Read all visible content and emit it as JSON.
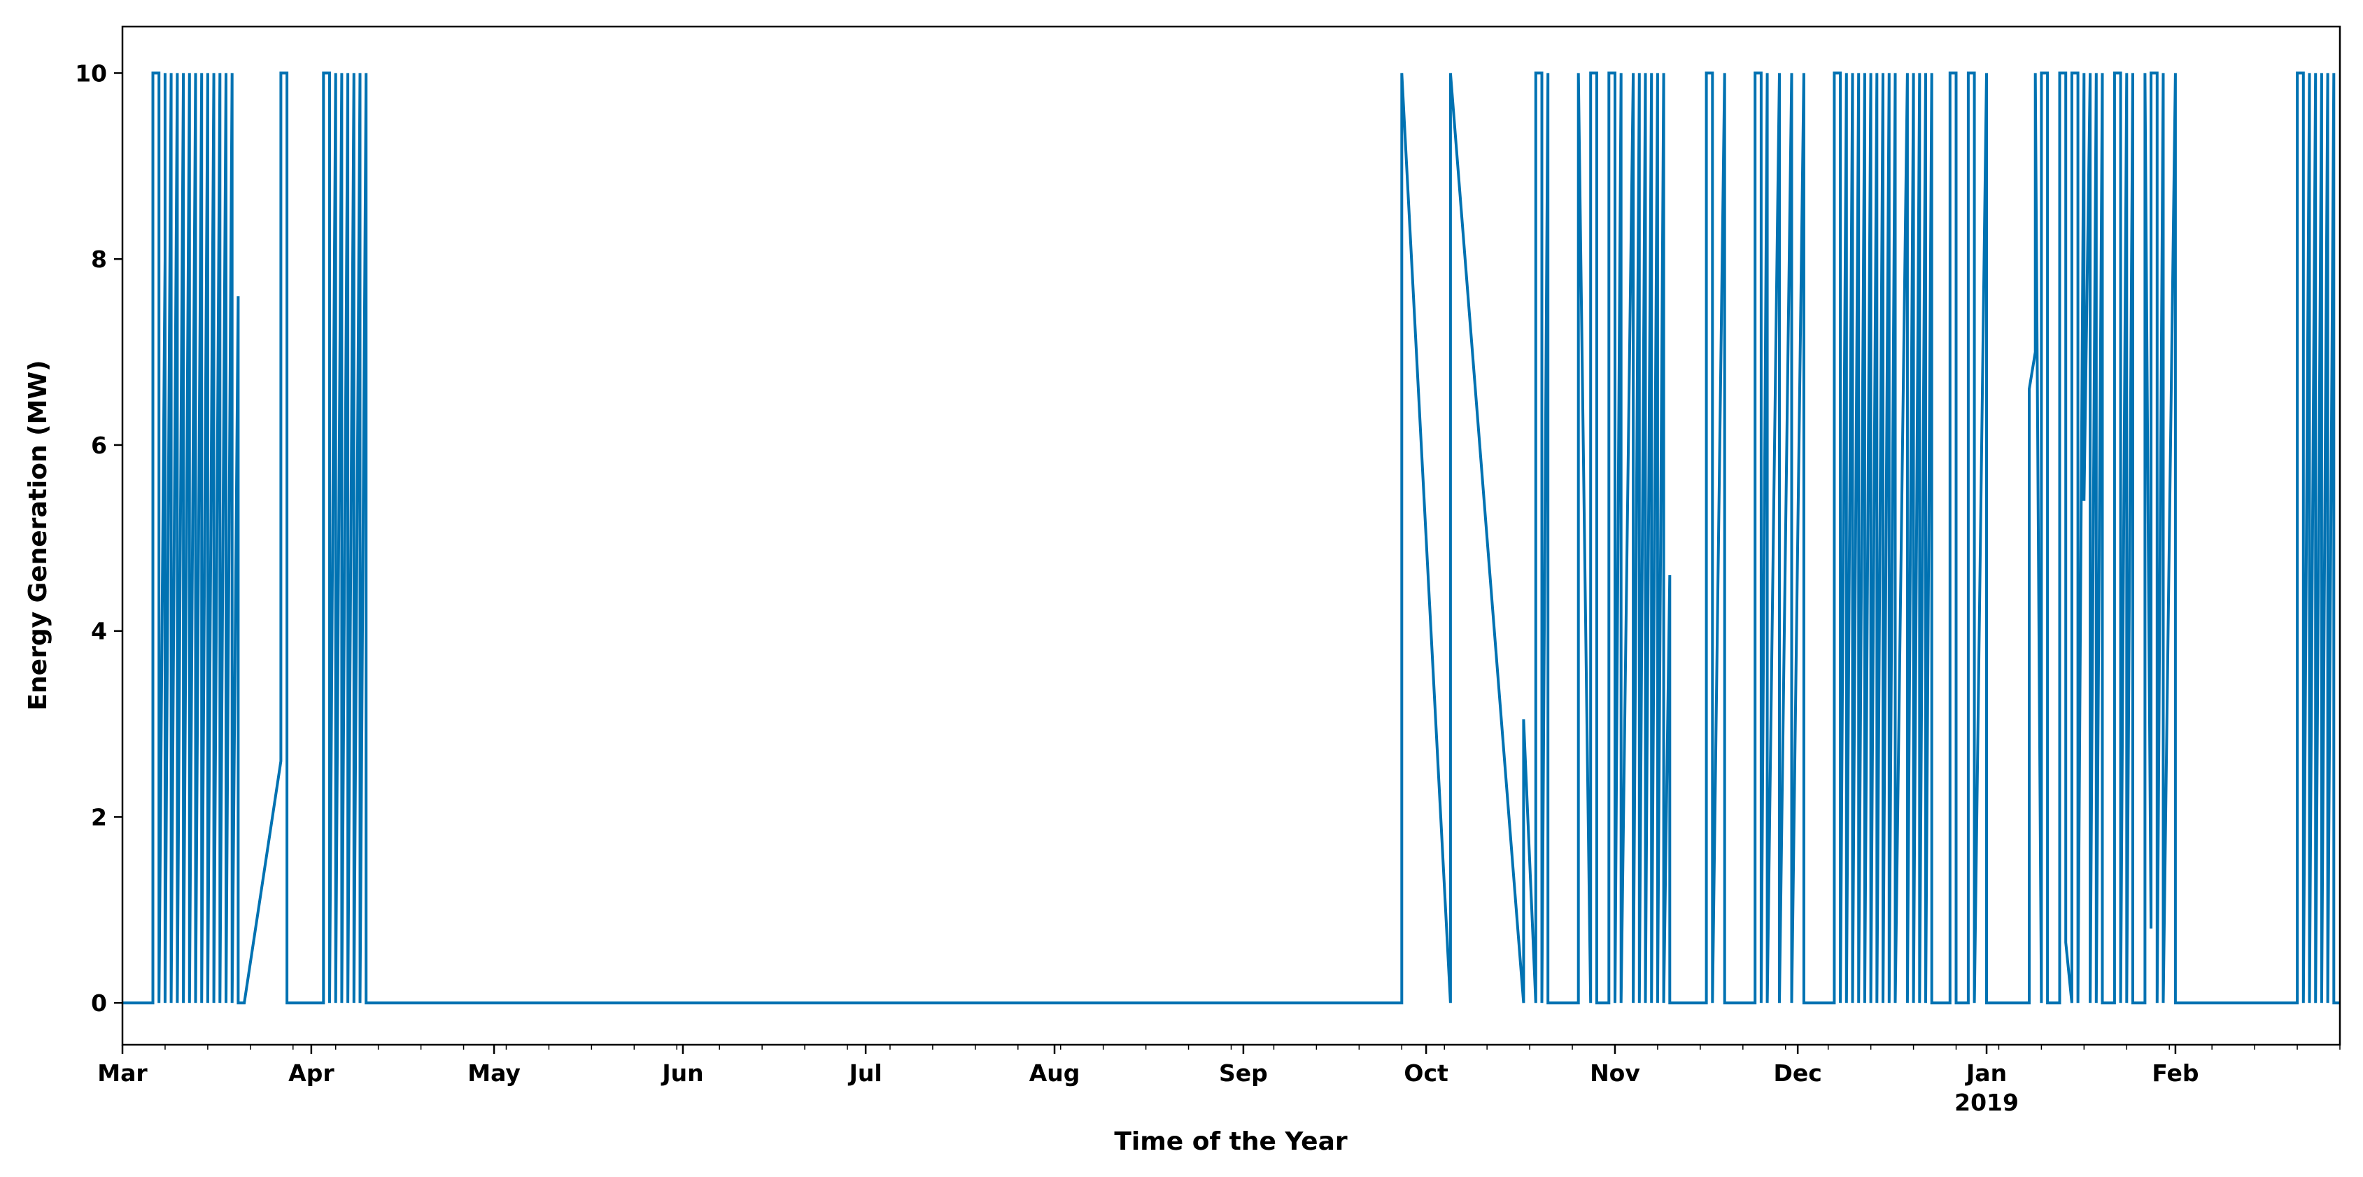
{
  "chart_data": {
    "type": "line",
    "title": "",
    "xlabel": "Time of the Year",
    "ylabel": "Energy Generation (MW)",
    "ylim": [
      -0.45,
      10.5
    ],
    "xlim": [
      "2018-03-01",
      "2019-02-28"
    ],
    "grid": false,
    "legend": "none",
    "line_color": "#0072b2",
    "y_ticks": [
      0,
      2,
      4,
      6,
      8,
      10
    ],
    "y_tick_labels": [
      "0",
      "2",
      "4",
      "6",
      "8",
      "10"
    ],
    "x_ticks": [
      {
        "date": "2018-03-01",
        "label": "Mar"
      },
      {
        "date": "2018-04-01",
        "label": "Apr"
      },
      {
        "date": "2018-05-01",
        "label": "May"
      },
      {
        "date": "2018-06-01",
        "label": "Jun"
      },
      {
        "date": "2018-07-01",
        "label": "Jul"
      },
      {
        "date": "2018-08-01",
        "label": "Aug"
      },
      {
        "date": "2018-09-01",
        "label": "Sep"
      },
      {
        "date": "2018-10-01",
        "label": "Oct"
      },
      {
        "date": "2018-11-01",
        "label": "Nov"
      },
      {
        "date": "2018-12-01",
        "label": "Dec"
      },
      {
        "date": "2019-01-01",
        "label": "Jan",
        "sublabel": "2019"
      },
      {
        "date": "2019-02-01",
        "label": "Feb"
      }
    ],
    "series": [
      {
        "x": [
          "2018-03-01",
          "2018-03-06",
          "2018-03-06",
          "2018-03-07",
          "2018-03-07",
          "2018-03-08",
          "2018-03-08",
          "2018-03-08",
          "2018-03-09",
          "2018-03-09",
          "2018-03-10",
          "2018-03-10",
          "2018-03-11",
          "2018-03-11",
          "2018-03-12",
          "2018-03-12",
          "2018-03-13",
          "2018-03-13",
          "2018-03-14",
          "2018-03-14",
          "2018-03-15",
          "2018-03-15",
          "2018-03-16",
          "2018-03-16",
          "2018-03-17",
          "2018-03-17",
          "2018-03-18",
          "2018-03-18",
          "2018-03-19",
          "2018-03-19",
          "2018-03-20",
          "2018-03-20",
          "2018-03-21",
          "2018-03-21",
          "2018-03-27",
          "2018-03-27",
          "2018-03-28",
          "2018-03-28",
          "2018-04-03",
          "2018-04-03",
          "2018-04-04",
          "2018-04-04",
          "2018-04-05",
          "2018-04-05",
          "2018-04-06",
          "2018-04-06",
          "2018-04-07",
          "2018-04-07",
          "2018-04-08",
          "2018-04-08",
          "2018-04-09",
          "2018-04-09",
          "2018-04-10",
          "2018-04-10",
          "2018-09-27",
          "2018-09-27",
          "2018-10-05",
          "2018-10-05",
          "2018-10-17",
          "2018-10-17",
          "2018-10-19",
          "2018-10-19",
          "2018-10-20",
          "2018-10-20",
          "2018-10-21",
          "2018-10-21",
          "2018-10-26",
          "2018-10-26",
          "2018-10-28",
          "2018-10-28",
          "2018-10-29",
          "2018-10-29",
          "2018-10-31",
          "2018-10-31",
          "2018-11-01",
          "2018-11-01",
          "2018-11-02",
          "2018-11-02",
          "2018-11-04",
          "2018-11-04",
          "2018-11-05",
          "2018-11-05",
          "2018-11-06",
          "2018-11-06",
          "2018-11-07",
          "2018-11-07",
          "2018-11-08",
          "2018-11-08",
          "2018-11-09",
          "2018-11-09",
          "2018-11-10",
          "2018-11-10",
          "2018-11-16",
          "2018-11-16",
          "2018-11-17",
          "2018-11-17",
          "2018-11-19",
          "2018-11-19",
          "2018-11-24",
          "2018-11-24",
          "2018-11-25",
          "2018-11-25",
          "2018-11-26",
          "2018-11-26",
          "2018-11-28",
          "2018-11-28",
          "2018-11-30",
          "2018-11-30",
          "2018-12-02",
          "2018-12-02",
          "2018-12-07",
          "2018-12-07",
          "2018-12-08",
          "2018-12-08",
          "2018-12-09",
          "2018-12-09",
          "2018-12-10",
          "2018-12-10",
          "2018-12-11",
          "2018-12-11",
          "2018-12-12",
          "2018-12-12",
          "2018-12-13",
          "2018-12-13",
          "2018-12-14",
          "2018-12-14",
          "2018-12-15",
          "2018-12-15",
          "2018-12-16",
          "2018-12-16",
          "2018-12-17",
          "2018-12-17",
          "2018-12-19",
          "2018-12-19",
          "2018-12-20",
          "2018-12-20",
          "2018-12-21",
          "2018-12-21",
          "2018-12-22",
          "2018-12-22",
          "2018-12-23",
          "2018-12-23",
          "2018-12-26",
          "2018-12-26",
          "2018-12-27",
          "2018-12-27",
          "2018-12-29",
          "2018-12-29",
          "2018-12-30",
          "2018-12-30",
          "2019-01-01",
          "2019-01-01",
          "2019-01-08",
          "2019-01-08",
          "2019-01-09",
          "2019-01-09",
          "2019-01-10",
          "2019-01-10",
          "2019-01-11",
          "2019-01-11",
          "2019-01-13",
          "2019-01-13",
          "2019-01-14",
          "2019-01-14",
          "2019-01-15",
          "2019-01-15",
          "2019-01-16",
          "2019-01-16",
          "2019-01-17",
          "2019-01-17",
          "2019-01-18",
          "2019-01-18",
          "2019-01-19",
          "2019-01-19",
          "2019-01-20",
          "2019-01-20",
          "2019-01-22",
          "2019-01-22",
          "2019-01-23",
          "2019-01-23",
          "2019-01-24",
          "2019-01-24",
          "2019-01-25",
          "2019-01-25",
          "2019-01-27",
          "2019-01-27",
          "2019-01-28",
          "2019-01-28",
          "2019-01-29",
          "2019-01-29",
          "2019-01-30",
          "2019-01-30",
          "2019-02-01",
          "2019-02-01",
          "2019-02-21",
          "2019-02-21",
          "2019-02-22",
          "2019-02-22",
          "2019-02-23",
          "2019-02-23",
          "2019-02-24",
          "2019-02-24",
          "2019-02-25",
          "2019-02-25",
          "2019-02-26",
          "2019-02-26",
          "2019-02-27",
          "2019-02-27",
          "2019-02-28"
        ],
        "y": [
          0,
          0,
          10,
          10,
          0,
          8,
          10,
          0,
          10,
          0,
          10,
          0,
          10,
          0,
          10,
          0,
          10,
          0,
          10,
          0,
          10,
          0,
          10,
          0,
          10,
          0,
          10,
          0,
          10,
          0,
          7.6,
          0,
          0,
          0,
          2.6,
          10,
          10,
          0,
          0,
          10,
          10,
          0,
          10,
          0,
          10,
          0,
          10,
          0,
          10,
          0,
          10,
          0,
          10,
          0,
          0,
          10,
          0,
          10,
          0,
          3.05,
          0,
          10,
          10,
          0,
          10,
          0,
          0,
          10,
          0,
          10,
          10,
          0,
          0,
          10,
          10,
          0,
          10,
          0,
          10,
          0,
          10,
          0,
          10,
          0,
          10,
          0,
          10,
          0,
          10,
          0,
          4.6,
          0,
          0,
          10,
          10,
          0,
          10,
          0,
          0,
          10,
          10,
          0,
          10,
          0,
          10,
          0,
          10,
          0,
          10,
          0,
          0,
          10,
          10,
          0,
          10,
          0,
          10,
          0,
          10,
          0,
          10,
          0,
          10,
          0,
          10,
          0,
          10,
          0,
          10,
          0,
          10,
          0,
          10,
          0,
          10,
          0,
          10,
          0,
          10,
          0,
          10,
          0,
          0,
          10,
          10,
          0,
          0,
          10,
          10,
          0,
          10,
          0,
          0,
          6.6,
          7,
          10,
          0,
          10,
          10,
          0,
          0,
          10,
          10,
          0.65,
          0,
          10,
          10,
          0,
          10,
          5.4,
          10,
          0,
          10,
          0,
          10,
          0,
          0,
          10,
          10,
          0,
          10,
          0,
          10,
          0,
          0,
          10,
          0.8,
          10,
          10,
          0,
          10,
          0,
          10,
          0,
          0,
          10,
          10,
          0,
          10,
          0,
          10,
          0,
          10,
          0,
          10,
          0,
          10,
          0,
          0
        ]
      }
    ]
  }
}
